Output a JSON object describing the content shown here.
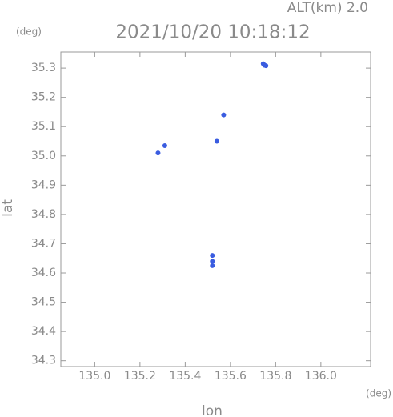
{
  "chart_data": {
    "type": "scatter",
    "title": "2021/10/20 10:18:12",
    "subtitle": "ALT(km) 2.0",
    "x_label": "lon",
    "y_label": "lat",
    "x_unit": "(deg)",
    "y_unit": "(deg)",
    "series": [
      {
        "color": "#3a5ce0",
        "x": [
          135.75,
          135.745,
          135.757,
          135.57,
          135.54,
          135.28,
          135.31,
          135.52,
          135.52,
          135.52
        ],
        "values": [
          35.31,
          35.315,
          35.308,
          35.14,
          35.05,
          35.01,
          35.035,
          34.66,
          34.64,
          34.625
        ]
      }
    ],
    "xlim": [
      134.85,
      136.22
    ],
    "ylim": [
      34.28,
      35.355
    ],
    "xticks": [
      {
        "value": 135,
        "label": "135.0"
      },
      135.2,
      135.4,
      135.6,
      135.8,
      {
        "value": 136,
        "label": "136.0"
      }
    ],
    "yticks": [
      35.3,
      35.2,
      35.1,
      {
        "value": 35,
        "label": "35.0"
      },
      34.9,
      34.8,
      34.7,
      34.6,
      34.5,
      34.4,
      34.3
    ]
  }
}
